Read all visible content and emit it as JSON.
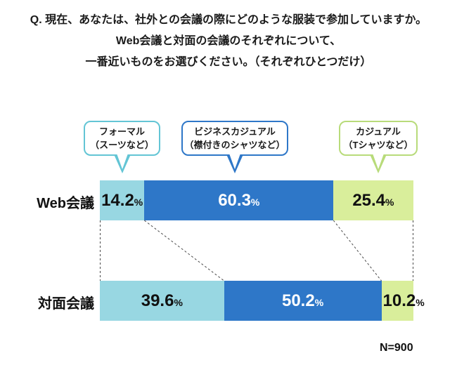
{
  "title": {
    "line1": "Q. 現在、あなたは、社外との会議の際にどのような服装で参加していますか。",
    "line2": "Web会議と対面の会議のそれぞれについて、",
    "line3": "一番近いものをお選びください。（それぞれひとつだけ）"
  },
  "legend": [
    {
      "line1": "フォーマル",
      "line2": "（スーツなど）",
      "border_color": "#63c5d5"
    },
    {
      "line1": "ビジネスカジュアル",
      "line2": "（襟付きのシャツなど）",
      "border_color": "#2e77c8"
    },
    {
      "line1": "カジュアル",
      "line2": "（Tシャツなど）",
      "border_color": "#b8db7a"
    }
  ],
  "chart_data": {
    "type": "bar",
    "subtype": "horizontal-stacked-100",
    "categories": [
      "Web会議",
      "対面会議"
    ],
    "series": [
      {
        "name": "フォーマル（スーツなど）",
        "color": "#98d7e2",
        "text_color": "#111111",
        "values": [
          14.2,
          39.6
        ]
      },
      {
        "name": "ビジネスカジュアル（襟付きのシャツなど）",
        "color": "#2e77c8",
        "text_color": "#ffffff",
        "values": [
          60.3,
          50.2
        ]
      },
      {
        "name": "カジュアル（Tシャツなど）",
        "color": "#d9ee9b",
        "text_color": "#111111",
        "values": [
          25.4,
          10.2
        ]
      }
    ],
    "value_suffix": "%",
    "xlim": [
      0,
      100
    ],
    "grid": false,
    "legend_position": "top-callouts",
    "sample_size": "N=900"
  }
}
